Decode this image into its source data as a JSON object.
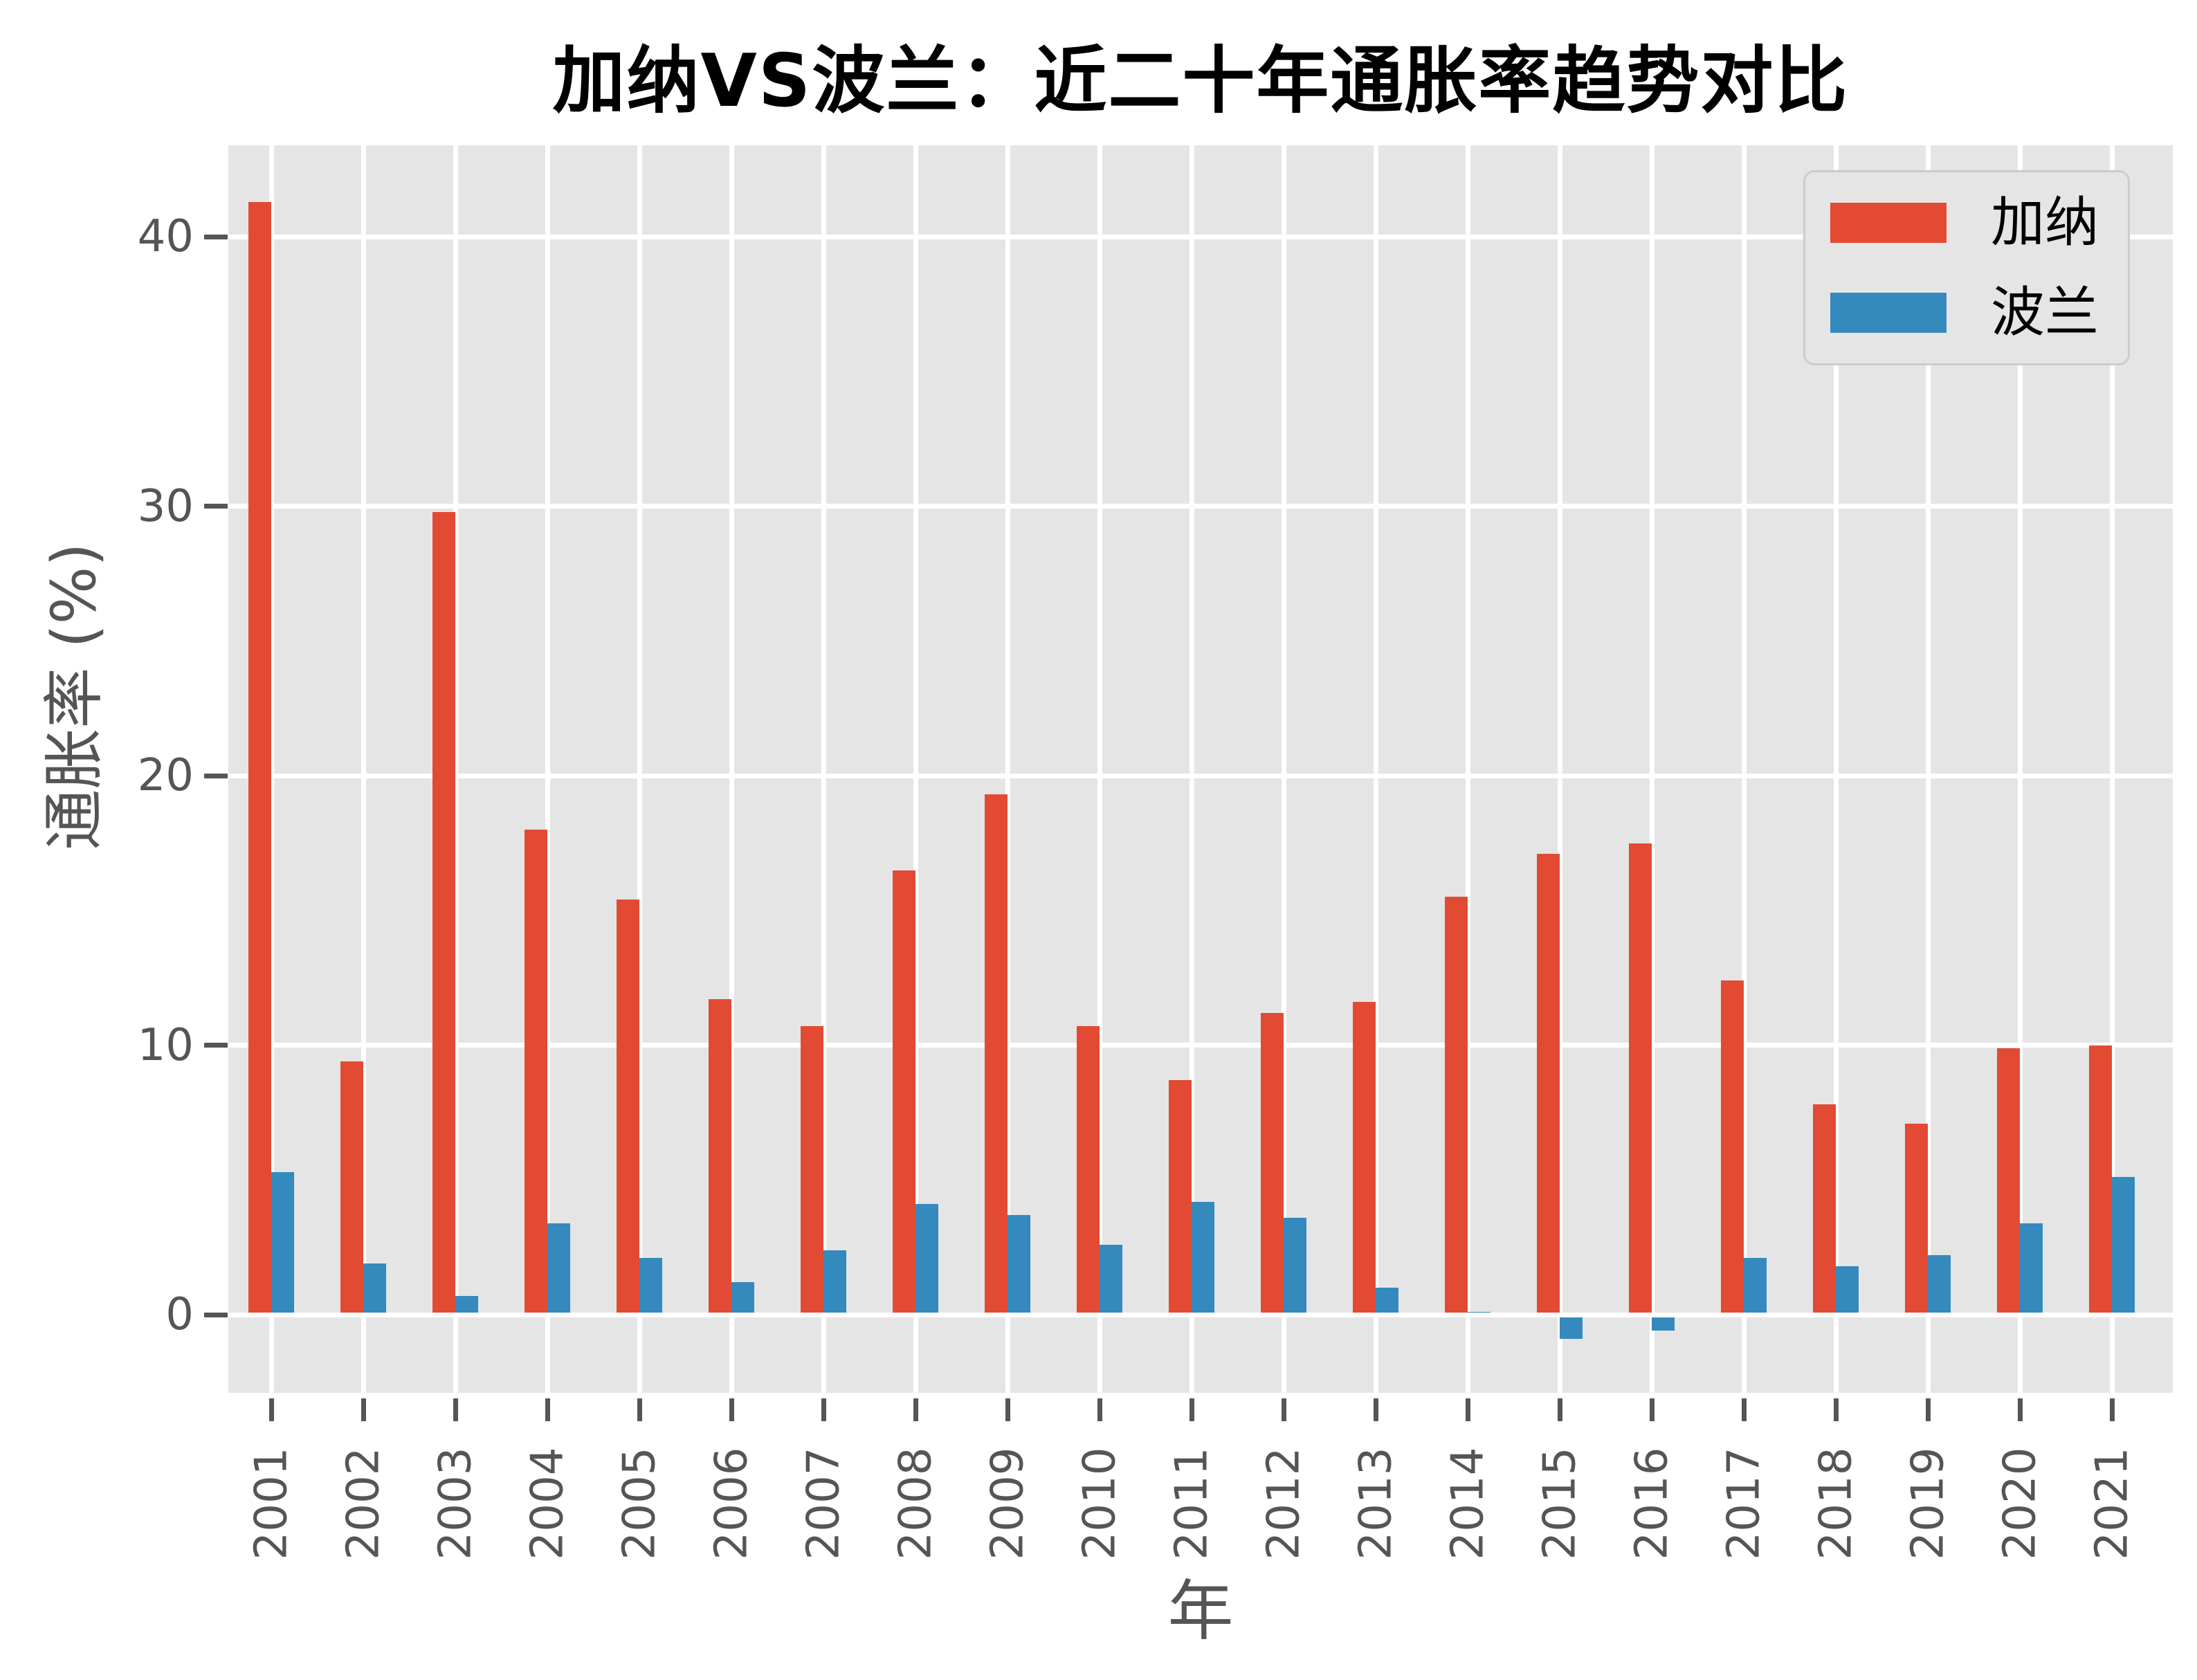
{
  "chart_data": {
    "type": "bar",
    "title": "加纳VS波兰：近二十年通胀率趋势对比",
    "xlabel": "年",
    "ylabel": "通胀率 (%)",
    "categories": [
      2001,
      2002,
      2003,
      2004,
      2005,
      2006,
      2007,
      2008,
      2009,
      2010,
      2011,
      2012,
      2013,
      2014,
      2015,
      2016,
      2017,
      2018,
      2019,
      2020,
      2021
    ],
    "series": [
      {
        "key": "ghana",
        "name": "加纳",
        "color": "#E24A33",
        "values": [
          41.3,
          9.4,
          29.8,
          18.0,
          15.4,
          11.7,
          10.7,
          16.5,
          19.3,
          10.7,
          8.7,
          11.2,
          11.6,
          15.5,
          17.1,
          17.5,
          12.4,
          7.8,
          7.1,
          9.9,
          10.0
        ]
      },
      {
        "key": "poland",
        "name": "波兰",
        "color": "#348ABD",
        "values": [
          5.3,
          1.9,
          0.7,
          3.4,
          2.1,
          1.2,
          2.4,
          4.1,
          3.7,
          2.6,
          4.2,
          3.6,
          1.0,
          0.1,
          -0.9,
          -0.6,
          2.1,
          1.8,
          2.2,
          3.4,
          5.1
        ]
      }
    ],
    "y_ticks": [
      0,
      10,
      20,
      30,
      40
    ],
    "ylim": [
      -2.9,
      43.4
    ],
    "grid": "on",
    "legend_position": "upper right",
    "colors": {
      "plot_background": "#E5E5E5",
      "grid": "#ffffff",
      "tick_text": "#555555",
      "title_text": "#000000",
      "legend_border": "#cccccc",
      "figure_background": "#ffffff"
    }
  }
}
